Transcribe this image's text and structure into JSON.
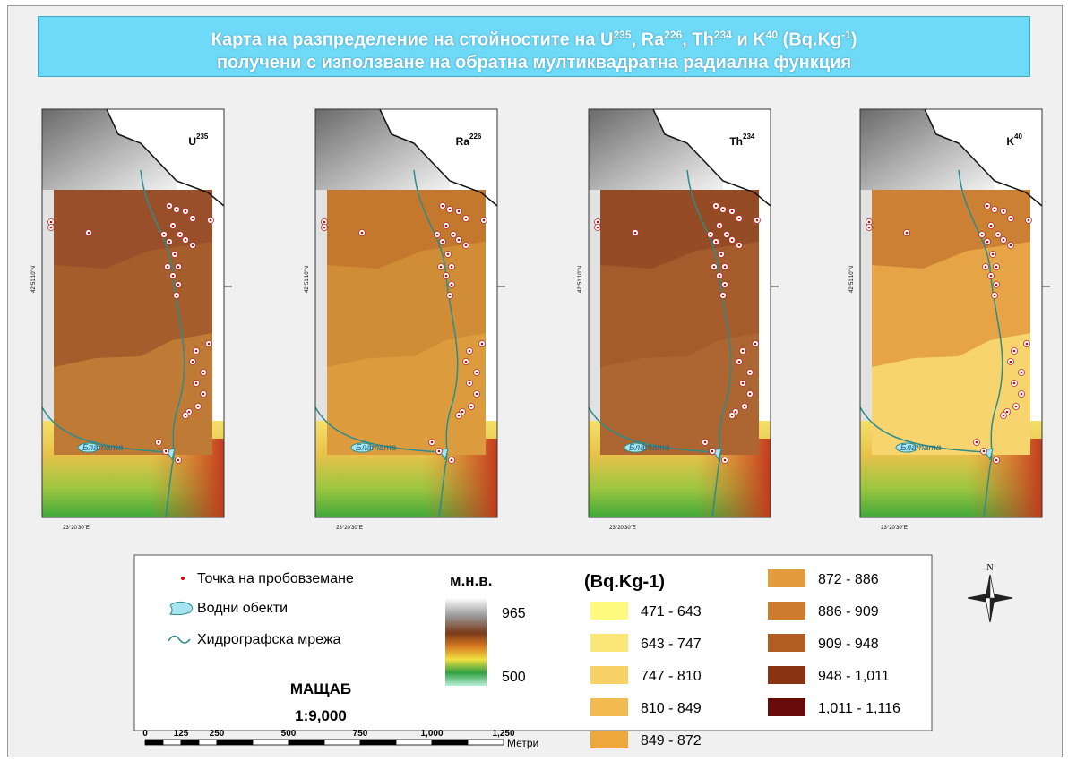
{
  "title": {
    "line1": [
      "Карта на разпределение на стойностите на U",
      "235",
      ", Ra",
      "226",
      ", Th",
      "234",
      " и K",
      "40",
      " (Bq.Kg",
      "-1",
      ")"
    ],
    "line2": "получени с използване на обратна мултиквадратна радиална функция"
  },
  "map": {
    "lat_label": "42°51'10\"N",
    "lon_label": "23°20'30\"E",
    "river_label": "Блатата",
    "panels": [
      {
        "label": "U",
        "sup": "235",
        "colors": [
          "#99502a",
          "#a45d2b",
          "#bf7b35"
        ]
      },
      {
        "label": "Ra",
        "sup": "226",
        "colors": [
          "#c4782d",
          "#d18c36",
          "#dc9c3e"
        ]
      },
      {
        "label": "Th",
        "sup": "234",
        "colors": [
          "#954b24",
          "#a55b2b",
          "#ad6531"
        ]
      },
      {
        "label": "K",
        "sup": "40",
        "colors": [
          "#cc8034",
          "#e6a446",
          "#f8d46e"
        ]
      }
    ]
  },
  "legend": {
    "point": "Точка на пробовземане",
    "water": "Водни обекти",
    "network": "Хидрографска мрежа",
    "elevation_title": "м.н.в.",
    "elevation_high": "965",
    "elevation_low": "500",
    "classes_title": "(Bq.Kg-1)",
    "classes": [
      {
        "label": "471 - 643",
        "color": "#fff97e"
      },
      {
        "label": "643 - 747",
        "color": "#fbe678"
      },
      {
        "label": "747 - 810",
        "color": "#f7d166"
      },
      {
        "label": "810 - 849",
        "color": "#f2bb50"
      },
      {
        "label": "849 - 872",
        "color": "#eda83b"
      },
      {
        "label": "872 - 886",
        "color": "#e39b3d"
      },
      {
        "label": "886 - 909",
        "color": "#cf7b2d"
      },
      {
        "label": "909 - 948",
        "color": "#b05c22"
      },
      {
        "label": "948 - 1,011",
        "color": "#8a3312"
      },
      {
        "label": "1,011 - 1,116",
        "color": "#690a0a"
      }
    ]
  },
  "scale": {
    "title": "МАЩАБ",
    "ratio": "1:9,000",
    "ticks": [
      "0",
      "125",
      "250",
      "500",
      "750",
      "1,000",
      "1,250"
    ],
    "unit": "Метри"
  },
  "north": "N"
}
